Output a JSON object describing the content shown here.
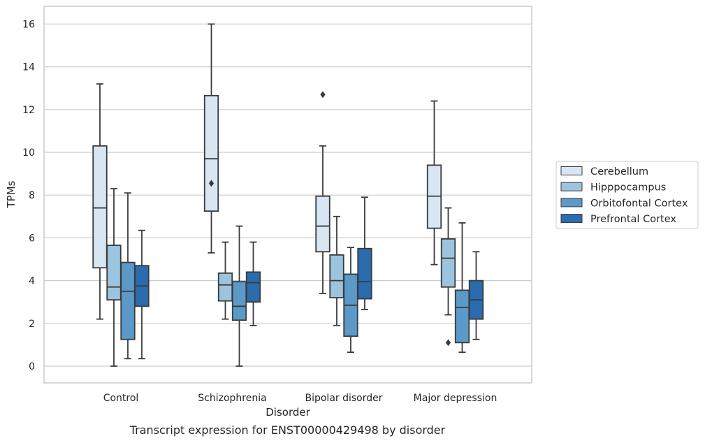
{
  "caption": "Transcript expression for ENST00000429498 by disorder",
  "chart_data": {
    "type": "boxplot",
    "xlabel": "Disorder",
    "ylabel": "TPMs",
    "categories": [
      "Control",
      "Schizophrenia",
      "Bipolar disorder",
      "Major depression"
    ],
    "ylim": [
      -0.8,
      16.8
    ],
    "yticks": [
      0,
      2,
      4,
      6,
      8,
      10,
      12,
      14,
      16
    ],
    "grid": "horizontal",
    "legend_position": "right",
    "series": [
      {
        "name": "Cerebellum",
        "color": "#d8e6f4",
        "boxes": [
          {
            "whisker_low": 2.2,
            "q1": 4.6,
            "median": 7.4,
            "q3": 10.3,
            "whisker_high": 13.2,
            "outliers": []
          },
          {
            "whisker_low": 5.3,
            "q1": 7.25,
            "median": 9.7,
            "q3": 12.65,
            "whisker_high": 16.0,
            "outliers": [
              8.55
            ]
          },
          {
            "whisker_low": 3.4,
            "q1": 5.35,
            "median": 6.55,
            "q3": 7.95,
            "whisker_high": 10.3,
            "outliers": [
              12.7
            ]
          },
          {
            "whisker_low": 4.75,
            "q1": 6.45,
            "median": 7.95,
            "q3": 9.4,
            "whisker_high": 12.4,
            "outliers": []
          }
        ]
      },
      {
        "name": "Hipppocampus",
        "color": "#9cc4de",
        "boxes": [
          {
            "whisker_low": 0.0,
            "q1": 3.1,
            "median": 3.7,
            "q3": 5.65,
            "whisker_high": 8.3,
            "outliers": []
          },
          {
            "whisker_low": 2.2,
            "q1": 3.05,
            "median": 3.8,
            "q3": 4.35,
            "whisker_high": 5.8,
            "outliers": []
          },
          {
            "whisker_low": 1.9,
            "q1": 3.2,
            "median": 4.0,
            "q3": 5.2,
            "whisker_high": 7.0,
            "outliers": []
          },
          {
            "whisker_low": 2.4,
            "q1": 3.7,
            "median": 5.05,
            "q3": 5.95,
            "whisker_high": 7.4,
            "outliers": [
              1.1
            ]
          }
        ]
      },
      {
        "name": "Orbitofontal Cortex",
        "color": "#5b9ac8",
        "boxes": [
          {
            "whisker_low": 0.35,
            "q1": 1.25,
            "median": 3.5,
            "q3": 4.85,
            "whisker_high": 8.1,
            "outliers": []
          },
          {
            "whisker_low": 0.0,
            "q1": 2.15,
            "median": 2.8,
            "q3": 3.95,
            "whisker_high": 6.55,
            "outliers": []
          },
          {
            "whisker_low": 0.65,
            "q1": 1.4,
            "median": 2.85,
            "q3": 4.3,
            "whisker_high": 5.55,
            "outliers": []
          },
          {
            "whisker_low": 0.65,
            "q1": 1.1,
            "median": 2.75,
            "q3": 3.55,
            "whisker_high": 6.7,
            "outliers": []
          }
        ]
      },
      {
        "name": "Prefrontal Cortex",
        "color": "#2a6cad",
        "boxes": [
          {
            "whisker_low": 0.35,
            "q1": 2.8,
            "median": 3.75,
            "q3": 4.7,
            "whisker_high": 6.35,
            "outliers": []
          },
          {
            "whisker_low": 1.9,
            "q1": 3.0,
            "median": 3.9,
            "q3": 4.4,
            "whisker_high": 5.8,
            "outliers": []
          },
          {
            "whisker_low": 2.65,
            "q1": 3.15,
            "median": 3.95,
            "q3": 5.5,
            "whisker_high": 7.9,
            "outliers": []
          },
          {
            "whisker_low": 1.25,
            "q1": 2.2,
            "median": 3.1,
            "q3": 4.0,
            "whisker_high": 5.35,
            "outliers": []
          }
        ]
      }
    ]
  }
}
